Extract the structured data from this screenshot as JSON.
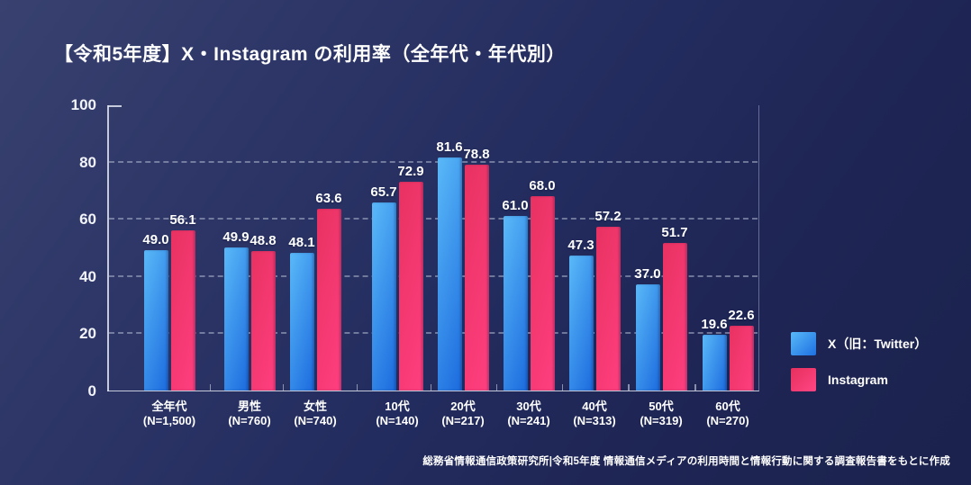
{
  "header": {
    "title": "【令和5年度】X・Instagram の利用率（全年代・年代別）"
  },
  "footnote": {
    "source": "総務省情報通信政策研究所|令和5年度 情報通信メディアの利用時間と情報行動に関する調査報告書をもとに作成"
  },
  "legend": {
    "items": [
      {
        "label": "X（旧：Twitter）",
        "color_from": "#58b9f8",
        "color_to": "#1e70e2"
      },
      {
        "label": "Instagram",
        "color_from": "#e72f5d",
        "color_to": "#ff4684"
      }
    ]
  },
  "colors": {
    "background_from": "#38416f",
    "background_to": "#1b224d",
    "x_bar_from": "#5ab9f8",
    "x_bar_to": "#1b6ade",
    "instagram_bar_from": "#e83261",
    "instagram_bar_to": "#ff3f80",
    "grid": "#aab1cd",
    "text": "#ffffff"
  },
  "chart_data": {
    "type": "bar",
    "title": "【令和5年度】X・Instagram の利用率（全年代・年代別）",
    "categories": [
      "全年代",
      "男性",
      "女性",
      "10代",
      "20代",
      "30代",
      "40代",
      "50代",
      "60代"
    ],
    "category_sublabels": [
      "(N=1,500)",
      "(N=760)",
      "(N=740)",
      "(N=140)",
      "(N=217)",
      "(N=241)",
      "(N=313)",
      "(N=319)",
      "(N=270)"
    ],
    "series": [
      {
        "name": "X（旧：Twitter）",
        "values": [
          49.0,
          49.9,
          48.1,
          65.7,
          81.6,
          61.0,
          47.3,
          37.0,
          19.6
        ],
        "color_from": "#5ab9f8",
        "color_to": "#1b6ade"
      },
      {
        "name": "Instagram",
        "values": [
          56.1,
          48.8,
          63.6,
          72.9,
          78.8,
          68.0,
          57.2,
          51.7,
          22.6
        ],
        "color_from": "#e83261",
        "color_to": "#ff3f80"
      }
    ],
    "ylabel": "",
    "xlabel": "",
    "ylim": [
      0,
      100
    ],
    "yticks": [
      0,
      20,
      40,
      60,
      80,
      100
    ],
    "grid": "horizontal dashed lines at 20/40/60/80, solid baseline at 0",
    "legend_position": "right-bottom",
    "value_labels": "one decimal, above each bar",
    "source": "総務省情報通信政策研究所|令和5年度 情報通信メディアの利用時間と情報行動に関する調査報告書をもとに作成"
  }
}
